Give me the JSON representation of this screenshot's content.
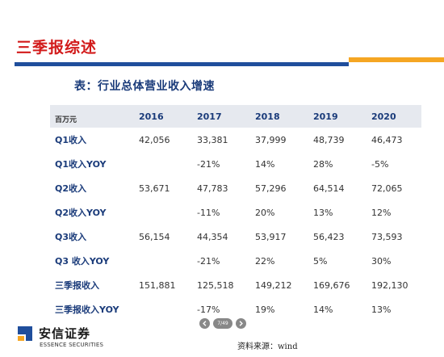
{
  "slide_title": "三季报综述",
  "table_caption": "表：行业总体营业收入增速",
  "table": {
    "unit_label": "百万元",
    "years": [
      "2016",
      "2017",
      "2018",
      "2019",
      "2020"
    ],
    "rows": [
      {
        "label": "Q1收入",
        "values": [
          "42,056",
          "33,381",
          "37,999",
          "48,739",
          "46,473"
        ]
      },
      {
        "label": "Q1收入YOY",
        "values": [
          "",
          "-21%",
          "14%",
          "28%",
          "-5%"
        ]
      },
      {
        "label": "Q2收入",
        "values": [
          "53,671",
          "47,783",
          "57,296",
          "64,514",
          "72,065"
        ]
      },
      {
        "label": "Q2收入YOY",
        "values": [
          "",
          "-11%",
          "20%",
          "13%",
          "12%"
        ]
      },
      {
        "label": "Q3收入",
        "values": [
          "56,154",
          "44,354",
          "53,917",
          "56,423",
          "73,593"
        ]
      },
      {
        "label": "Q3 收入YOY",
        "values": [
          "",
          "-21%",
          "22%",
          "5%",
          "30%"
        ]
      },
      {
        "label": "三季报收入",
        "values": [
          "151,881",
          "125,518",
          "149,212",
          "169,676",
          "192,130"
        ]
      },
      {
        "label": "三季报收入YOY",
        "values": [
          "",
          "-17%",
          "19%",
          "14%",
          "13%"
        ]
      }
    ]
  },
  "pager": {
    "count": "7/49",
    "prev_icon": "chevron-left-icon",
    "next_icon": "chevron-right-icon"
  },
  "brand": {
    "name": "安信证券",
    "subtitle": "ESSENCE SECURITIES",
    "logo_icon": "essence-logo-icon"
  },
  "source_note": "资料来源：wind",
  "colors": {
    "title_red": "#d21a1a",
    "rule_blue": "#1f4e9c",
    "rule_orange": "#f5a623",
    "header_bg": "#e6e9ef",
    "text_navy": "#1a3b7a"
  }
}
